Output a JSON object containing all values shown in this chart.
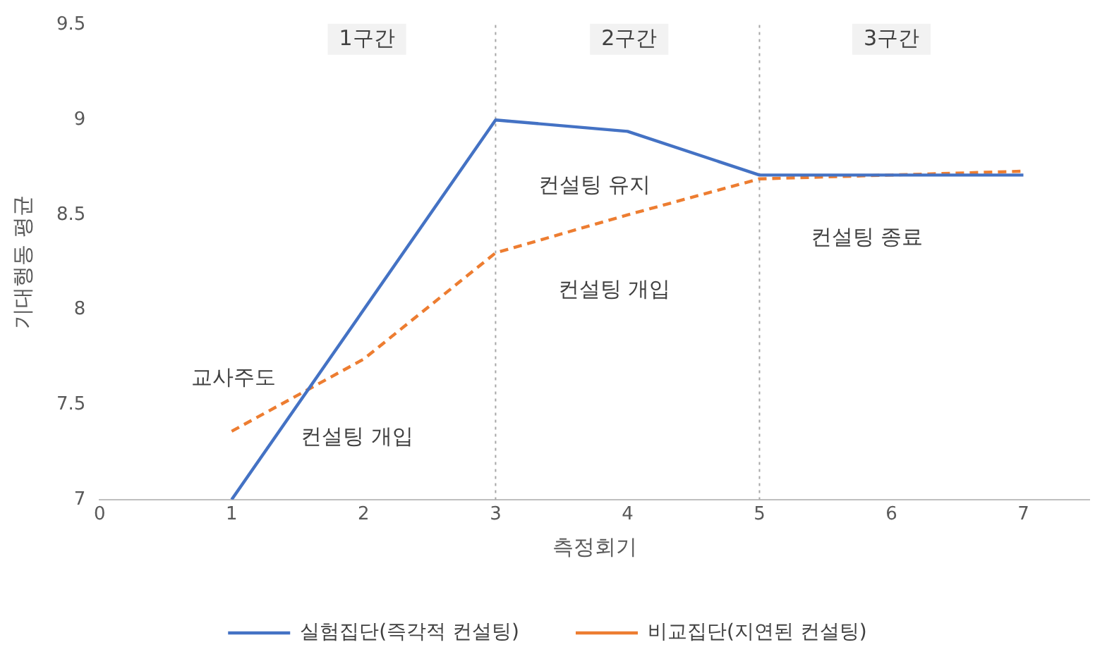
{
  "chart_data": {
    "type": "line",
    "xlabel": "측정회기",
    "ylabel": "기대행동 평균",
    "x": [
      1,
      2,
      3,
      4,
      5,
      6,
      7
    ],
    "series": [
      {
        "name": "실험집단(즉각적 컨설팅)",
        "color": "#4472c4",
        "line_style": "solid",
        "values": [
          7.0,
          8.0,
          9.0,
          8.94,
          8.71,
          8.71,
          8.71
        ]
      },
      {
        "name": "비교집단(지연된 컨설팅)",
        "color": "#ed7d31",
        "line_style": "dashed",
        "values": [
          7.36,
          7.74,
          8.3,
          8.5,
          8.69,
          8.71,
          8.73
        ]
      }
    ],
    "xlim": [
      0,
      7.5
    ],
    "xticks": [
      0,
      1,
      2,
      3,
      4,
      5,
      6,
      7
    ],
    "ylim": [
      7,
      9.5
    ],
    "yticks": [
      7,
      7.5,
      8,
      8.5,
      9,
      9.5
    ],
    "grid": false,
    "legend": "bottom",
    "marker": "none",
    "ref_lines": [
      {
        "axis": "x",
        "value": 3,
        "color": "#a6a6a6",
        "line_style": "dotted"
      },
      {
        "axis": "x",
        "value": 5,
        "color": "#a6a6a6",
        "line_style": "dotted"
      }
    ],
    "annotations": [
      "1구간",
      "2구간",
      "3구간",
      "교사주도",
      "컨설팅 개입",
      "컨설팅 유지",
      "컨설팅 개입",
      "컨설팅 종료"
    ]
  }
}
